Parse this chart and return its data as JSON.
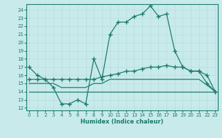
{
  "xlabel": "Humidex (Indice chaleur)",
  "x_all": [
    0,
    1,
    2,
    3,
    4,
    5,
    6,
    7,
    8,
    9,
    10,
    11,
    12,
    13,
    14,
    15,
    16,
    17,
    18,
    19,
    20,
    21,
    22,
    23
  ],
  "line_main": [
    17,
    16,
    15.5,
    14.5,
    12.5,
    12.5,
    13,
    12.5,
    18.0,
    15.5,
    21.0,
    22.5,
    22.5,
    23.2,
    23.5,
    24.5,
    23.2,
    23.5,
    19.0,
    17.0,
    16.5,
    16.5,
    15.0,
    14.0
  ],
  "line_upper": [
    15.5,
    15.5,
    15.5,
    15.5,
    15.5,
    15.5,
    15.5,
    15.5,
    15.5,
    15.8,
    16.0,
    16.2,
    16.5,
    16.5,
    16.8,
    17.0,
    17.0,
    17.2,
    17.0,
    17.0,
    16.5,
    16.5,
    16.0,
    14.0
  ],
  "line_mid": [
    15.0,
    15.0,
    15.0,
    15.0,
    14.5,
    14.5,
    14.5,
    14.5,
    15.0,
    15.0,
    15.5,
    15.5,
    15.5,
    15.5,
    15.5,
    15.5,
    15.5,
    15.5,
    15.5,
    15.5,
    15.5,
    15.5,
    14.8,
    14.0
  ],
  "line_lower": [
    14.0,
    14.0,
    14.0,
    14.0,
    14.0,
    14.0,
    14.0,
    14.0,
    14.0,
    14.0,
    14.0,
    14.0,
    14.0,
    14.0,
    14.0,
    14.0,
    14.0,
    14.0,
    14.0,
    14.0,
    14.0,
    14.0,
    14.0,
    14.0
  ],
  "line_color": "#1a7a6e",
  "background_color": "#c8eaea",
  "grid_color": "#b0d8d8",
  "ylim": [
    12,
    24.5
  ],
  "xlim": [
    0,
    23
  ],
  "yticks": [
    12,
    13,
    14,
    15,
    16,
    17,
    18,
    19,
    20,
    21,
    22,
    23,
    24
  ],
  "xticks": [
    0,
    1,
    2,
    3,
    4,
    5,
    6,
    7,
    8,
    9,
    10,
    11,
    12,
    13,
    14,
    15,
    16,
    17,
    18,
    19,
    20,
    21,
    22,
    23
  ]
}
